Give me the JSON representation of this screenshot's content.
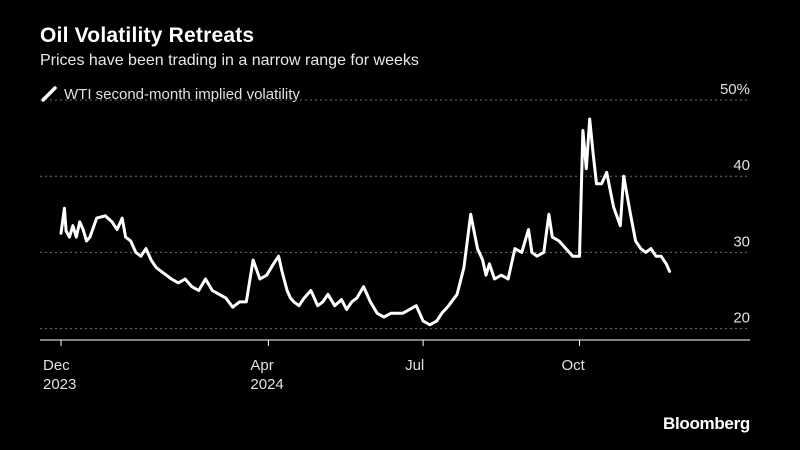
{
  "header": {
    "title": "Oil Volatility Retreats",
    "subtitle": "Prices have been trading in a narrow range for weeks"
  },
  "footer": {
    "source": "Bloomberg"
  },
  "colors": {
    "background": "#000000",
    "line": "#ffffff",
    "grid": "#6e6e6e",
    "text": "#e0e0e0"
  },
  "chart_data": {
    "type": "line",
    "title": "Oil Volatility Retreats",
    "subtitle": "Prices have been trading in a narrow range for weeks",
    "xlabel": "",
    "ylabel": "",
    "ylim": [
      18.5,
      50
    ],
    "xlim": [
      "2023-12-01",
      "2024-11-24"
    ],
    "grid": true,
    "y_axis_side": "right",
    "legend_position": "top-left",
    "y_ticks": [
      {
        "value": 50,
        "label": "50%"
      },
      {
        "value": 40,
        "label": "40"
      },
      {
        "value": 30,
        "label": "30"
      },
      {
        "value": 20,
        "label": "20"
      }
    ],
    "x_ticks": [
      {
        "value": "2023-12-01",
        "label": "Dec",
        "sublabel": "2023"
      },
      {
        "value": "2024-04-01",
        "label": "Apr",
        "sublabel": "2024"
      },
      {
        "value": "2024-07-01",
        "label": "Jul",
        "sublabel": ""
      },
      {
        "value": "2024-10-01",
        "label": "Oct",
        "sublabel": ""
      }
    ],
    "series": [
      {
        "name": "WTI second-month implied volatility",
        "x": [
          "2023-12-01",
          "2023-12-03",
          "2023-12-04",
          "2023-12-06",
          "2023-12-08",
          "2023-12-10",
          "2023-12-12",
          "2023-12-14",
          "2023-12-16",
          "2023-12-18",
          "2023-12-22",
          "2023-12-27",
          "2023-12-31",
          "2024-01-03",
          "2024-01-06",
          "2024-01-08",
          "2024-01-11",
          "2024-01-14",
          "2024-01-17",
          "2024-01-20",
          "2024-01-23",
          "2024-01-26",
          "2024-01-29",
          "2024-02-01",
          "2024-02-04",
          "2024-02-08",
          "2024-02-12",
          "2024-02-16",
          "2024-02-20",
          "2024-02-24",
          "2024-02-28",
          "2024-03-03",
          "2024-03-07",
          "2024-03-11",
          "2024-03-15",
          "2024-03-19",
          "2024-03-23",
          "2024-03-27",
          "2024-03-31",
          "2024-04-04",
          "2024-04-07",
          "2024-04-09",
          "2024-04-12",
          "2024-04-14",
          "2024-04-16",
          "2024-04-19",
          "2024-04-22",
          "2024-04-26",
          "2024-04-30",
          "2024-05-03",
          "2024-05-06",
          "2024-05-10",
          "2024-05-14",
          "2024-05-17",
          "2024-05-20",
          "2024-05-23",
          "2024-05-27",
          "2024-05-31",
          "2024-06-04",
          "2024-06-08",
          "2024-06-12",
          "2024-06-16",
          "2024-06-19",
          "2024-06-23",
          "2024-06-27",
          "2024-07-01",
          "2024-07-05",
          "2024-07-09",
          "2024-07-12",
          "2024-07-16",
          "2024-07-21",
          "2024-07-25",
          "2024-07-29",
          "2024-08-02",
          "2024-08-05",
          "2024-08-07",
          "2024-08-09",
          "2024-08-12",
          "2024-08-16",
          "2024-08-20",
          "2024-08-24",
          "2024-08-28",
          "2024-09-01",
          "2024-09-03",
          "2024-09-06",
          "2024-09-10",
          "2024-09-13",
          "2024-09-15",
          "2024-09-19",
          "2024-09-23",
          "2024-09-27",
          "2024-10-01",
          "2024-10-03",
          "2024-10-05",
          "2024-10-07",
          "2024-10-09",
          "2024-10-11",
          "2024-10-14",
          "2024-10-17",
          "2024-10-21",
          "2024-10-25",
          "2024-10-27",
          "2024-10-31",
          "2024-11-03",
          "2024-11-06",
          "2024-11-09",
          "2024-11-12",
          "2024-11-15",
          "2024-11-18",
          "2024-11-21",
          "2024-11-23"
        ],
        "values": [
          32.5,
          35.8,
          32.8,
          32.0,
          33.5,
          32.0,
          34.0,
          33.0,
          31.5,
          32.0,
          34.5,
          34.8,
          34.0,
          33.0,
          34.5,
          32.0,
          31.5,
          30.0,
          29.5,
          30.5,
          29.0,
          28.0,
          27.5,
          27.0,
          26.5,
          26.0,
          26.5,
          25.5,
          25.0,
          26.5,
          25.0,
          24.5,
          24.0,
          22.8,
          23.5,
          23.5,
          29.0,
          26.5,
          27.0,
          28.5,
          29.5,
          27.5,
          25.0,
          24.0,
          23.5,
          23.0,
          24.0,
          25.0,
          23.0,
          23.5,
          24.5,
          23.0,
          23.8,
          22.5,
          23.5,
          24.0,
          25.5,
          23.5,
          22.0,
          21.5,
          22.0,
          22.0,
          22.0,
          22.5,
          23.0,
          21.0,
          20.5,
          21.0,
          22.0,
          23.0,
          24.5,
          28.0,
          35.0,
          30.5,
          29.0,
          27.0,
          28.5,
          26.5,
          27.0,
          26.5,
          30.5,
          30.0,
          33.0,
          30.0,
          29.5,
          30.0,
          35.0,
          32.0,
          31.5,
          30.5,
          29.5,
          29.5,
          46.0,
          41.0,
          47.5,
          43.0,
          39.0,
          39.0,
          40.5,
          36.0,
          33.5,
          40.0,
          35.0,
          31.5,
          30.5,
          30.0,
          30.5,
          29.5,
          29.5,
          28.5,
          27.5
        ]
      }
    ]
  }
}
